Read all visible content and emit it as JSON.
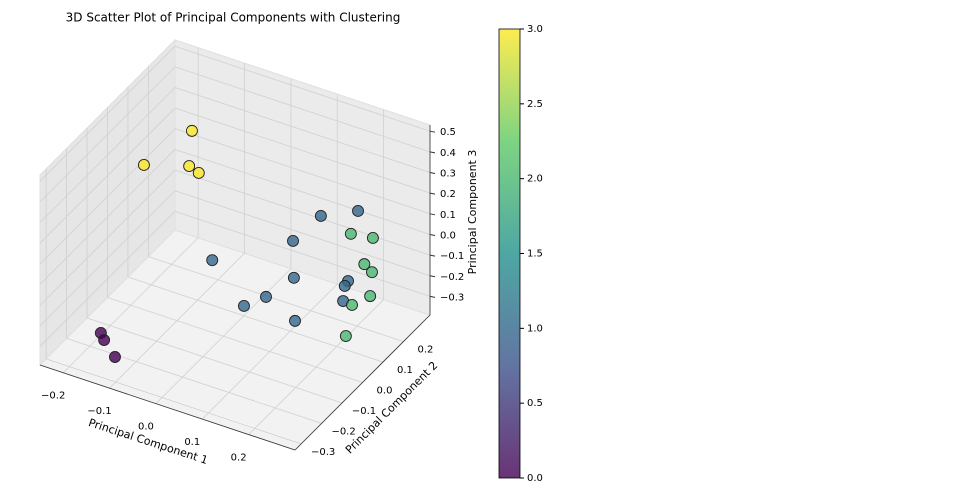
{
  "chart_data": {
    "type": "scatter3d",
    "title": "3D Scatter Plot of Principal Components with Clustering",
    "xlabel": "Principal Component 1",
    "ylabel": "Principal Component 2",
    "zlabel": "Principal Component 3",
    "x": [
      -0.097,
      -0.186,
      -0.103,
      -0.088,
      -0.177,
      -0.17,
      -0.132,
      0.152,
      0.203,
      0.121,
      0.005,
      0.152,
      0.196,
      0.189,
      0.121,
      0.088,
      0.2,
      0.169,
      0.173,
      0.206,
      0.202,
      0.204,
      0.2,
      0.19,
      0.235
    ],
    "y": [
      0.066,
      0.033,
      0.066,
      0.079,
      -0.198,
      -0.198,
      -0.231,
      0.132,
      0.198,
      0.066,
      -0.066,
      0.0,
      0.165,
      0.165,
      -0.066,
      -0.099,
      0.132,
      -0.033,
      0.231,
      0.264,
      0.231,
      0.264,
      0.264,
      0.198,
      0.066
    ],
    "z": [
      0.466,
      0.267,
      0.291,
      0.256,
      -0.311,
      -0.34,
      -0.361,
      0.175,
      0.172,
      0.096,
      0.047,
      0.006,
      -0.14,
      -0.169,
      -0.044,
      -0.08,
      -0.201,
      -0.157,
      0.006,
      -0.022,
      -0.119,
      -0.189,
      -0.308,
      -0.293,
      -0.279
    ],
    "c": [
      3,
      3,
      3,
      3,
      0,
      0,
      0,
      1,
      1,
      1,
      1,
      1,
      1,
      1,
      1,
      1,
      1,
      1,
      2,
      2,
      2,
      2,
      2,
      2,
      2
    ],
    "cmap": "viridis",
    "xlim": [
      -0.25,
      0.3
    ],
    "ylim": [
      -0.33,
      0.33
    ],
    "zlim": [
      -0.39,
      0.53
    ],
    "xticks": [
      {
        "value": -0.2,
        "label": "−0.2"
      },
      {
        "value": -0.1,
        "label": "−0.1"
      },
      {
        "value": 0,
        "label": "0.0"
      },
      0.1,
      0.2
    ],
    "yticks": [
      {
        "value": -0.3,
        "label": "−0.3"
      },
      {
        "value": -0.2,
        "label": "−0.2"
      },
      {
        "value": -0.1,
        "label": "−0.1"
      },
      {
        "value": 0,
        "label": "0.0"
      },
      0.1,
      0.2
    ],
    "zticks": [
      {
        "value": -0.3,
        "label": "−0.3"
      },
      {
        "value": -0.2,
        "label": "−0.2"
      },
      {
        "value": -0.1,
        "label": "−0.1"
      },
      {
        "value": 0,
        "label": "0.0"
      },
      0.1,
      0.2,
      0.3,
      0.4,
      0.5
    ],
    "clim": [
      0,
      3
    ],
    "cticks": [
      {
        "value": 0,
        "label": "0.0"
      },
      0.5,
      {
        "value": 1,
        "label": "1.0"
      },
      1.5,
      {
        "value": 2,
        "label": "2.0"
      },
      2.5,
      {
        "value": 3,
        "label": "3.0"
      }
    ],
    "grid": true
  }
}
